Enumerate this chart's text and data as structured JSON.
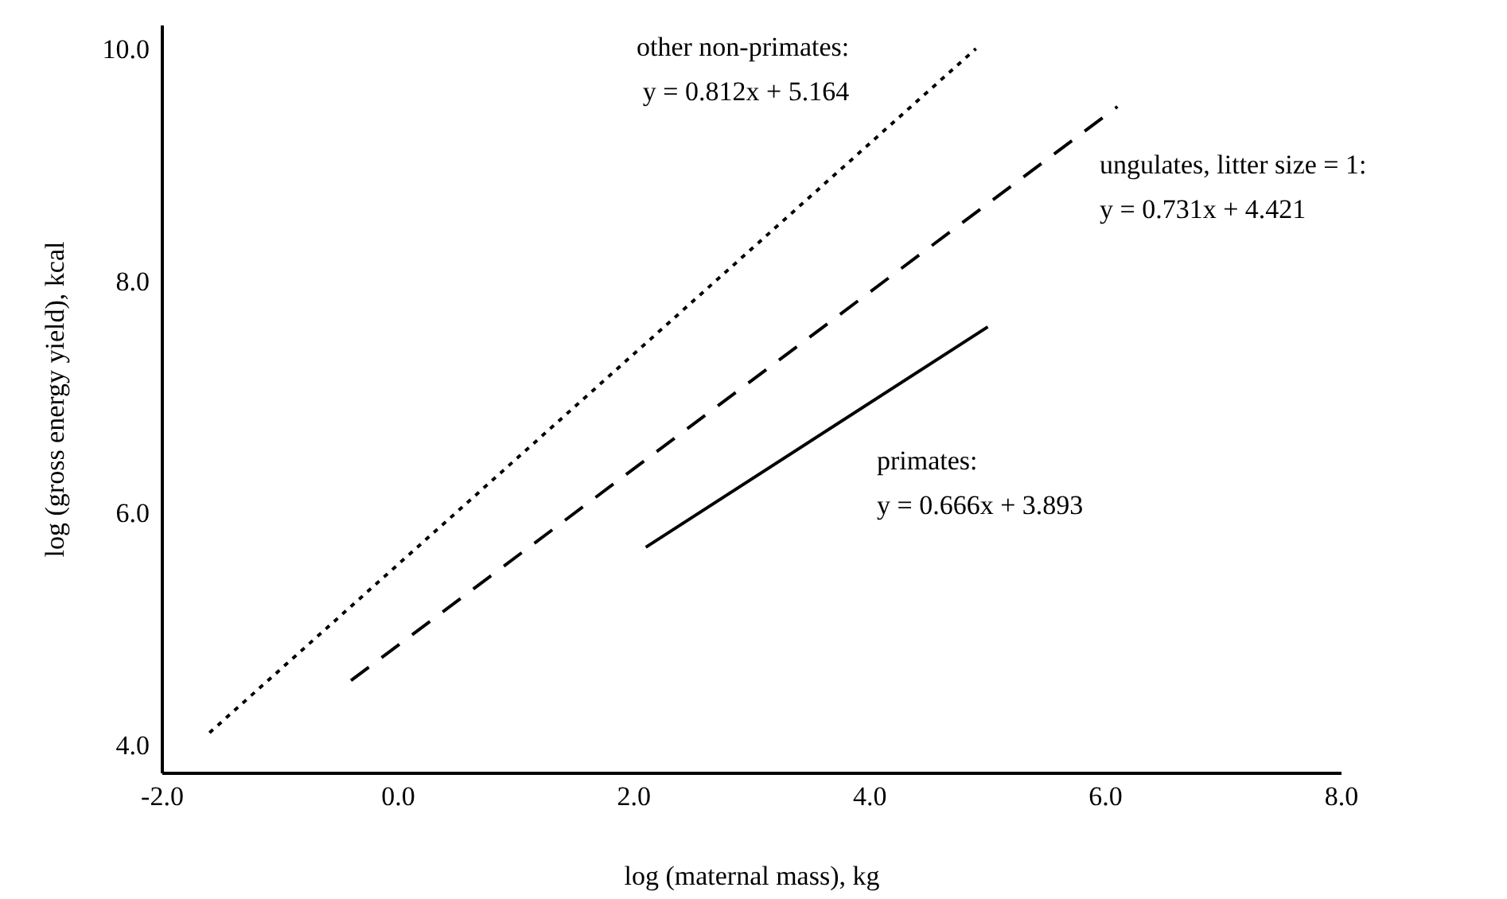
{
  "chart_data": {
    "type": "line",
    "xlabel": "log (maternal mass), kg",
    "ylabel": "log (gross energy yield), kcal",
    "xlim": [
      -2,
      8
    ],
    "xticks": [
      {
        "value": -2,
        "label": "-2.0"
      },
      {
        "value": 0,
        "label": "0.0"
      },
      {
        "value": 2,
        "label": "2.0"
      },
      {
        "value": 4,
        "label": "4.0"
      },
      {
        "value": 6,
        "label": "6.0"
      },
      {
        "value": 8,
        "label": "8.0"
      }
    ],
    "ylim": [
      3.75,
      10.2
    ],
    "yticks": [
      {
        "value": 4,
        "label": "4.0"
      },
      {
        "value": 6,
        "label": "6.0"
      },
      {
        "value": 8,
        "label": "8.0"
      },
      {
        "value": 10,
        "label": "10.0"
      }
    ],
    "grid": false,
    "legend": false,
    "marker": "none",
    "series": [
      {
        "name": "other non-primates:",
        "color": "#000000",
        "line_style": "dotted",
        "x": [
          -1.6,
          4.9
        ],
        "values": [
          4.1,
          10.0
        ]
      },
      {
        "name": "ungulates, litter size = 1:",
        "color": "#000000",
        "line_style": "dashed",
        "x": [
          -0.4,
          6.1
        ],
        "values": [
          4.55,
          9.5
        ]
      },
      {
        "name": "primates:",
        "color": "#000000",
        "line_style": "solid",
        "x": [
          2.1,
          5.0
        ],
        "values": [
          5.7,
          7.6
        ]
      }
    ],
    "annotations": [
      "y = 0.812x + 5.164",
      "y = 0.731x + 4.421",
      "y = 0.666x + 3.893"
    ]
  }
}
